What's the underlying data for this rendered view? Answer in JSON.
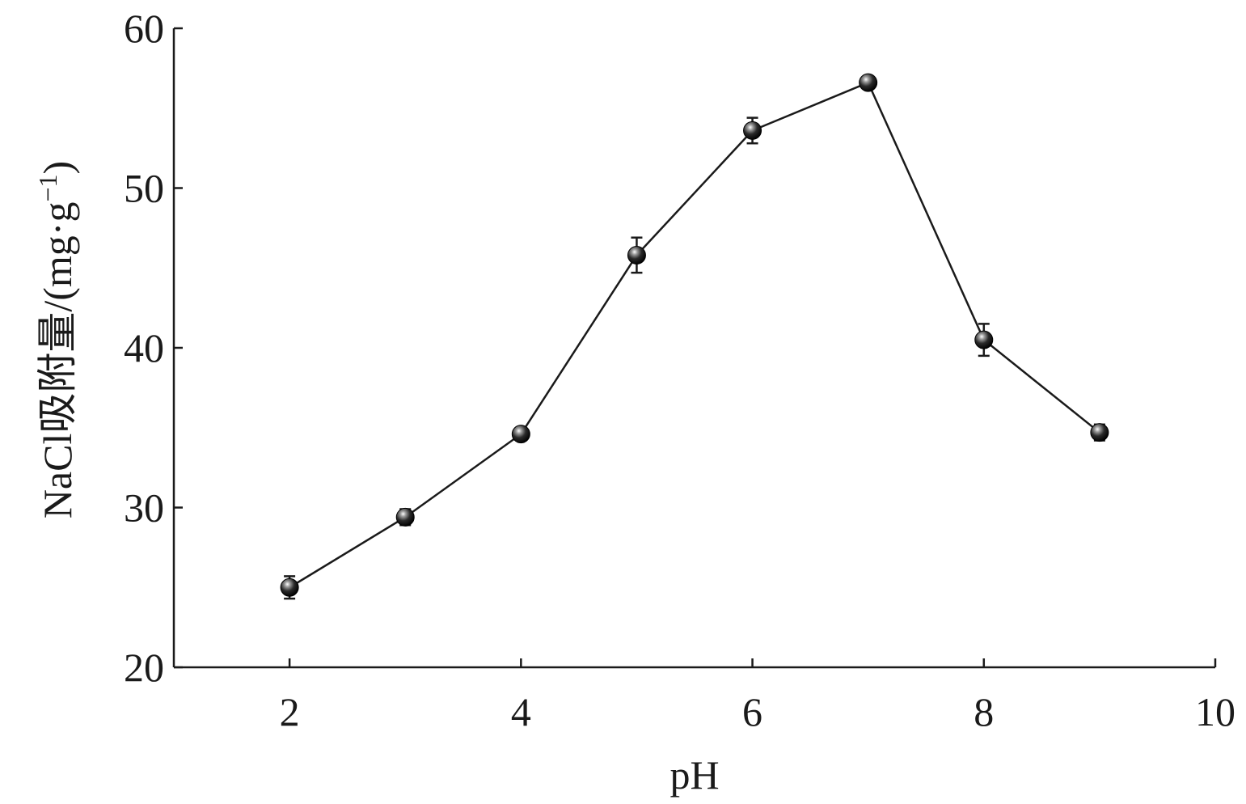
{
  "chart_data": {
    "type": "line",
    "xlabel": "pH",
    "ylabel": "NaCl吸附量/(mg·g",
    "ylabel_sup": "−1",
    "ylabel_close": ")",
    "xlim": [
      1,
      10
    ],
    "ylim": [
      20,
      60
    ],
    "x_ticks": [
      2,
      4,
      6,
      8,
      10
    ],
    "y_ticks": [
      20,
      30,
      40,
      50,
      60
    ],
    "grid": false,
    "marker": "sphere",
    "colors": {
      "line": "#1a1a1a",
      "marker": "#1a1a1a"
    },
    "series": [
      {
        "x": [
          2,
          3,
          4,
          5,
          6,
          7,
          8,
          9
        ],
        "y": [
          25.0,
          29.4,
          34.6,
          45.8,
          53.6,
          56.6,
          40.5,
          34.7
        ],
        "error": [
          0.7,
          0.5,
          0.4,
          1.1,
          0.8,
          0.3,
          1.0,
          0.5
        ]
      }
    ]
  }
}
